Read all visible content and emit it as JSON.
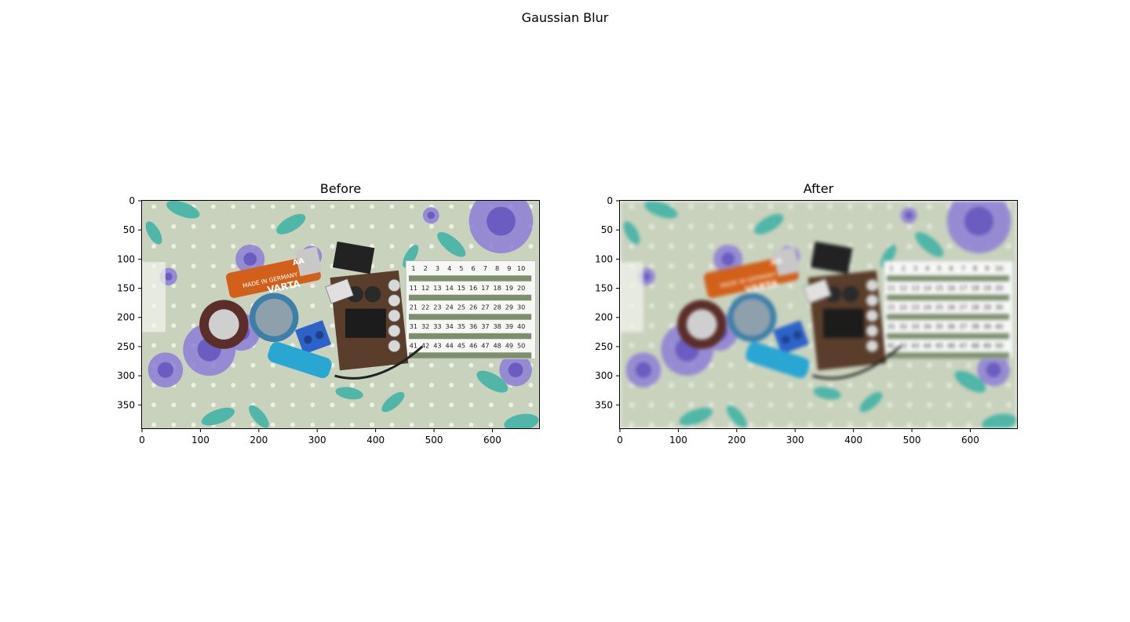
{
  "figure": {
    "suptitle": "Gaussian Blur"
  },
  "panels": [
    {
      "title": "Before",
      "yticks": [
        "0",
        "50",
        "100",
        "150",
        "200",
        "250",
        "300",
        "350"
      ],
      "xticks": [
        "0",
        "100",
        "200",
        "300",
        "400",
        "500",
        "600"
      ]
    },
    {
      "title": "After",
      "yticks": [
        "0",
        "50",
        "100",
        "150",
        "200",
        "250",
        "300",
        "350"
      ],
      "xticks": [
        "0",
        "100",
        "200",
        "300",
        "400",
        "500",
        "600"
      ]
    }
  ],
  "photo": {
    "battery_brand": "VARTA",
    "battery_size": "AA",
    "battery_text": "MADE IN GERMANY",
    "grid_numbers": [
      "1",
      "2",
      "3",
      "4",
      "5",
      "6",
      "7",
      "8",
      "9",
      "10",
      "11",
      "12",
      "13",
      "14",
      "15",
      "16",
      "17",
      "18",
      "19",
      "20",
      "21",
      "22",
      "23",
      "24",
      "25",
      "26",
      "27",
      "28",
      "29",
      "30",
      "31",
      "32",
      "33",
      "34",
      "35",
      "36",
      "37",
      "38",
      "39",
      "40",
      "41",
      "42",
      "43",
      "44",
      "45",
      "46",
      "47",
      "48",
      "49",
      "50"
    ]
  },
  "colors": {
    "background_fabric": "#c9d2bd",
    "flower_purple": "#8d7fd6",
    "leaf_teal": "#4fb6a8",
    "battery_orange": "#d2601a",
    "connector_blue": "#2d63c9",
    "pcb_brown": "#5a3d2a"
  },
  "image_extent": {
    "width": 680,
    "height": 390
  }
}
